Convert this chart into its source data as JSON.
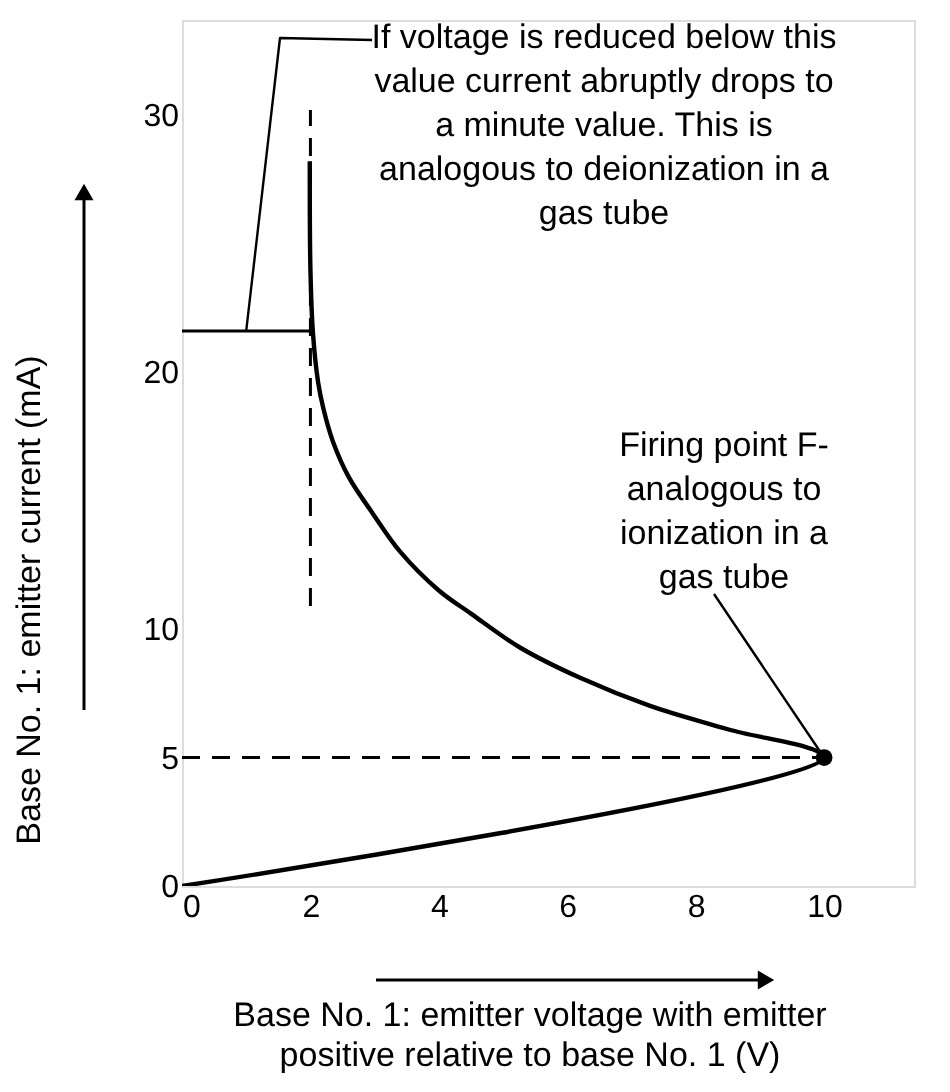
{
  "chart_data": {
    "type": "line",
    "xlabel": "Base No. 1: emitter voltage with emitter positive relative to base No. 1 (V)",
    "ylabel": "Base No. 1: emitter current (mA)",
    "xlim": [
      0,
      11.4
    ],
    "ylim": [
      0,
      33.7
    ],
    "xticks": [
      0,
      2,
      4,
      6,
      8,
      10
    ],
    "yticks": [
      0,
      5,
      10,
      20,
      30
    ],
    "grid": false,
    "series": [
      {
        "color": "#000000",
        "line_style": "solid",
        "x": [
          0,
          10,
          8.5,
          7.3,
          6.2,
          5.25,
          4.5,
          4.0,
          3.4,
          2.97,
          2.6,
          2.35,
          2.2,
          2.12,
          2.04,
          2.0,
          1.99
        ],
        "values": [
          0,
          5,
          6.1,
          7.0,
          8.1,
          9.3,
          10.6,
          11.5,
          13.0,
          14.5,
          15.9,
          17.3,
          18.6,
          19.6,
          21.5,
          24,
          28.2
        ]
      },
      {
        "color": "#000000",
        "line_style": "solid",
        "x": [
          0,
          2
        ],
        "values": [
          21.6,
          21.6
        ]
      },
      {
        "color": "#000000",
        "line_style": "dashed",
        "x": [
          0,
          10
        ],
        "values": [
          5,
          5
        ]
      },
      {
        "color": "#000000",
        "line_style": "dashed",
        "x": [
          2,
          2
        ],
        "values": [
          10.9,
          30.2
        ]
      },
      {
        "type": "scatter",
        "color": "#000000",
        "marker": "circle",
        "x": [
          10
        ],
        "values": [
          5
        ]
      }
    ],
    "annotations": [
      {
        "text": "If voltage is reduced below this value current abruptly drops to a minute value. This is analogous to deionization in a gas tube",
        "x": 1,
        "y": 21.6
      },
      {
        "text": "Firing point F- analogous to ionization in a gas tube",
        "x": 10,
        "y": 5
      }
    ]
  }
}
